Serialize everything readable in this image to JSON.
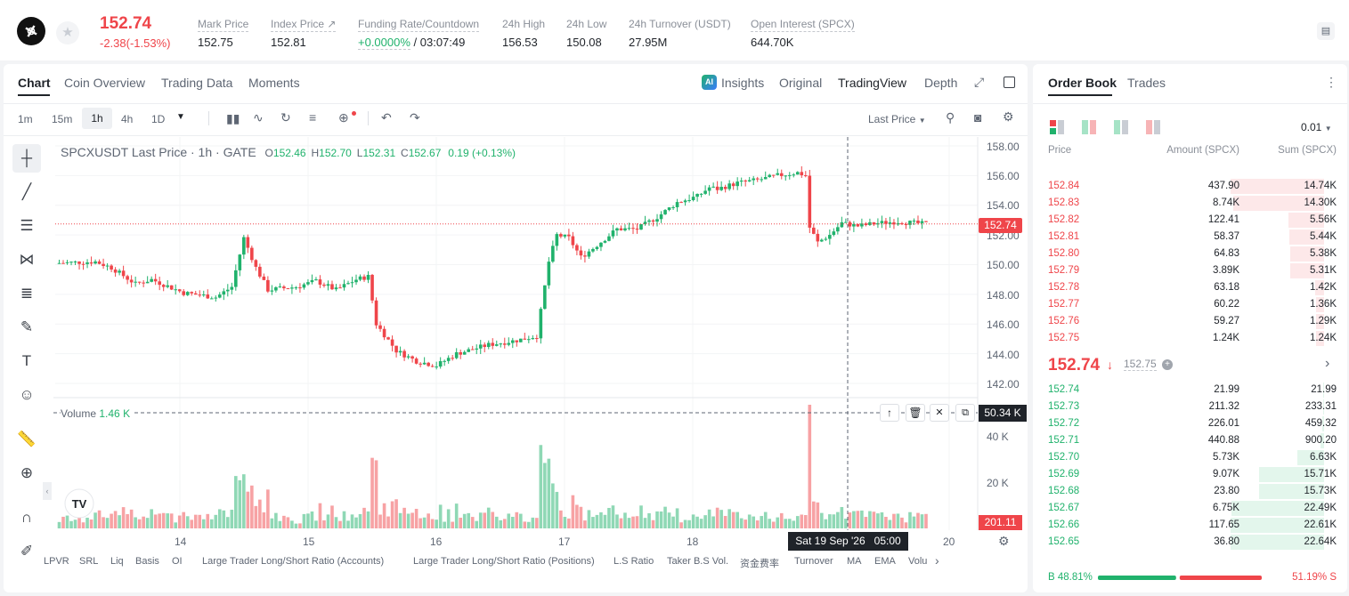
{
  "header": {
    "last_price": "152.74",
    "change": "-2.38(-1.53%)",
    "stats": [
      {
        "label": "Mark Price",
        "value": "152.75"
      },
      {
        "label": "Index Price ↗",
        "value": "152.81"
      },
      {
        "label": "Funding Rate/Countdown",
        "value": "+0.0000%",
        "value2": " / 03:07:49"
      },
      {
        "label": "24h High",
        "value": "156.53"
      },
      {
        "label": "24h Low",
        "value": "150.08"
      },
      {
        "label": "24h Turnover (USDT)",
        "value": "27.95M"
      },
      {
        "label": "Open Interest (SPCX)",
        "value": "644.70K"
      }
    ]
  },
  "chart_tabs": [
    "Chart",
    "Coin Overview",
    "Trading Data",
    "Moments"
  ],
  "view_tabs": [
    "Insights",
    "Original",
    "TradingView",
    "Depth"
  ],
  "timeframes": [
    "1m",
    "15m",
    "1h",
    "4h",
    "1D"
  ],
  "price_type": "Last Price",
  "legend": {
    "symbol": "SPCXUSDT Last Price · 1h · GATE",
    "o_label": "O",
    "o": "152.46",
    "h_label": "H",
    "h": "152.70",
    "l_label": "L",
    "l": "152.31",
    "c_label": "C",
    "c": "152.67",
    "chg": "0.19 (+0.13%)"
  },
  "volume_legend": {
    "label": "Volume",
    "value": "1.46 K"
  },
  "price_axis": [
    "158.00",
    "156.00",
    "154.00",
    "152.00",
    "150.00",
    "148.00",
    "146.00",
    "144.00",
    "142.00"
  ],
  "current_price_tag": "152.74",
  "volume_axis": [
    "40 K",
    "20 K"
  ],
  "volume_crosshair_tag": "50.34 K",
  "volume_current_tag": "201.11",
  "time_axis": [
    "14",
    "15",
    "16",
    "17",
    "18",
    "20"
  ],
  "crosshair_time": "Sat 19 Sep '26   05:00",
  "indicators": [
    "LPVR",
    "SRL",
    "Liq",
    "Basis",
    "OI",
    "Large Trader Long/Short Ratio (Accounts)",
    "Large Trader Long/Short Ratio (Positions)",
    "L.S Ratio",
    "Taker B.S Vol.",
    "资金费率",
    "Turnover",
    "MA",
    "EMA",
    "Volu"
  ],
  "colors": {
    "up": "#20b26c",
    "down": "#ef454a"
  },
  "orderbook": {
    "tabs": [
      "Order Book",
      "Trades"
    ],
    "precision": "0.01",
    "headers": [
      "Price",
      "Amount (SPCX)",
      "Sum (SPCX)"
    ],
    "asks": [
      {
        "price": "152.84",
        "amount": "437.90",
        "sum": "14.74K",
        "depth": 1.0
      },
      {
        "price": "152.83",
        "amount": "8.74K",
        "sum": "14.30K",
        "depth": 0.97
      },
      {
        "price": "152.82",
        "amount": "122.41",
        "sum": "5.56K",
        "depth": 0.38
      },
      {
        "price": "152.81",
        "amount": "58.37",
        "sum": "5.44K",
        "depth": 0.37
      },
      {
        "price": "152.80",
        "amount": "64.83",
        "sum": "5.38K",
        "depth": 0.365
      },
      {
        "price": "152.79",
        "amount": "3.89K",
        "sum": "5.31K",
        "depth": 0.36
      },
      {
        "price": "152.78",
        "amount": "63.18",
        "sum": "1.42K",
        "depth": 0.1
      },
      {
        "price": "152.77",
        "amount": "60.22",
        "sum": "1.36K",
        "depth": 0.09
      },
      {
        "price": "152.76",
        "amount": "59.27",
        "sum": "1.29K",
        "depth": 0.088
      },
      {
        "price": "152.75",
        "amount": "1.24K",
        "sum": "1.24K",
        "depth": 0.085
      }
    ],
    "mid_price": "152.74",
    "mid_arrow": "↓",
    "mid_mark": "152.75",
    "bids": [
      {
        "price": "152.74",
        "amount": "21.99",
        "sum": "21.99",
        "depth": 0.01
      },
      {
        "price": "152.73",
        "amount": "211.32",
        "sum": "233.31",
        "depth": 0.01
      },
      {
        "price": "152.72",
        "amount": "226.01",
        "sum": "459.32",
        "depth": 0.02
      },
      {
        "price": "152.71",
        "amount": "440.88",
        "sum": "900.20",
        "depth": 0.04
      },
      {
        "price": "152.70",
        "amount": "5.73K",
        "sum": "6.63K",
        "depth": 0.29
      },
      {
        "price": "152.69",
        "amount": "9.07K",
        "sum": "15.71K",
        "depth": 0.7
      },
      {
        "price": "152.68",
        "amount": "23.80",
        "sum": "15.73K",
        "depth": 0.7
      },
      {
        "price": "152.67",
        "amount": "6.75K",
        "sum": "22.49K",
        "depth": 0.99
      },
      {
        "price": "152.66",
        "amount": "117.65",
        "sum": "22.61K",
        "depth": 1.0
      },
      {
        "price": "152.65",
        "amount": "36.80",
        "sum": "22.64K",
        "depth": 1.0
      }
    ],
    "buy_label": "B",
    "buy_pct": "48.81%",
    "sell_label": "S",
    "sell_pct": "51.19%",
    "buy_ratio": 0.4881
  }
}
